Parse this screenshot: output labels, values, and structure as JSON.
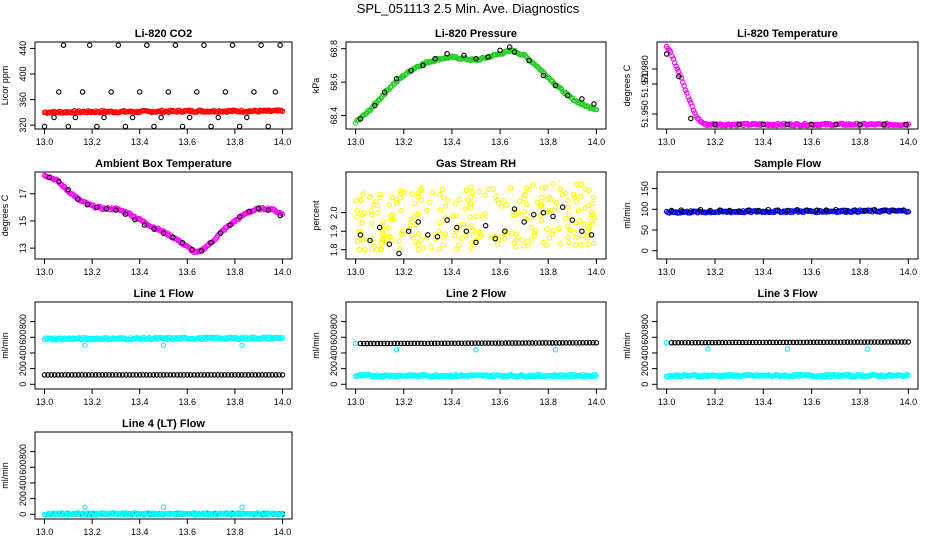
{
  "page": {
    "title": "SPL_051113  2.5 Min. Ave. Diagnostics"
  },
  "colors": {
    "red": "#ff0000",
    "green": "#22cc22",
    "magenta": "#ff00ff",
    "yellow": "#ffff00",
    "cyan": "#00ffff",
    "blue": "#0000ff",
    "black": "#000000"
  },
  "chart_data": [
    {
      "type": "scatter",
      "title": "Li-820 CO2",
      "ylabel": "Licor ppm",
      "xlim": [
        13.0,
        14.0
      ],
      "ylim": [
        314,
        450
      ],
      "x_ticks": [
        "13.0",
        "13.2",
        "13.4",
        "13.6",
        "13.8",
        "14.0"
      ],
      "y_ticks": [
        "320",
        "360",
        "400",
        "440"
      ],
      "series": [
        {
          "name": "black",
          "color": "#000000",
          "x": [
            13.0,
            13.02,
            13.04,
            13.06,
            13.08,
            13.1,
            13.13,
            13.16,
            13.19,
            13.22,
            13.25,
            13.28,
            13.31,
            13.34,
            13.37,
            13.4,
            13.43,
            13.46,
            13.49,
            13.52,
            13.55,
            13.58,
            13.61,
            13.64,
            13.67,
            13.7,
            13.73,
            13.76,
            13.79,
            13.82,
            13.85,
            13.88,
            13.91,
            13.94,
            13.97,
            13.99
          ],
          "y": [
            318,
            340,
            332,
            372,
            445,
            318,
            332,
            372,
            445,
            318,
            332,
            372,
            445,
            318,
            332,
            372,
            445,
            318,
            332,
            372,
            445,
            318,
            332,
            372,
            445,
            318,
            332,
            372,
            445,
            318,
            332,
            372,
            445,
            318,
            372,
            445
          ]
        },
        {
          "name": "red",
          "color": "#ff0000",
          "dense": true,
          "x": [
            13.0,
            13.2,
            13.4,
            13.6,
            13.8,
            14.0
          ],
          "y": [
            340,
            341,
            341,
            342,
            342,
            342
          ]
        }
      ]
    },
    {
      "type": "scatter",
      "title": "Li-820 Pressure",
      "ylabel": "kPa",
      "xlim": [
        13.0,
        14.0
      ],
      "ylim": [
        68.32,
        68.84
      ],
      "x_ticks": [
        "13.0",
        "13.2",
        "13.4",
        "13.6",
        "13.8",
        "14.0"
      ],
      "y_ticks": [
        "68.4",
        "68.6",
        "68.8"
      ],
      "series": [
        {
          "name": "green",
          "color": "#22cc22",
          "dense": true,
          "x": [
            13.0,
            13.05,
            13.1,
            13.15,
            13.2,
            13.25,
            13.3,
            13.35,
            13.4,
            13.45,
            13.5,
            13.55,
            13.6,
            13.65,
            13.7,
            13.75,
            13.8,
            13.85,
            13.9,
            13.95,
            14.0
          ],
          "y": [
            68.36,
            68.42,
            68.5,
            68.58,
            68.64,
            68.69,
            68.72,
            68.74,
            68.75,
            68.74,
            68.73,
            68.75,
            68.77,
            68.79,
            68.76,
            68.7,
            68.63,
            68.56,
            68.5,
            68.46,
            68.44
          ]
        },
        {
          "name": "black",
          "color": "#000000",
          "x": [
            13.02,
            13.08,
            13.12,
            13.17,
            13.23,
            13.28,
            13.33,
            13.38,
            13.45,
            13.5,
            13.55,
            13.6,
            13.64,
            13.66,
            13.72,
            13.78,
            13.83,
            13.88,
            13.94,
            13.99
          ],
          "y": [
            68.38,
            68.46,
            68.54,
            68.62,
            68.67,
            68.7,
            68.74,
            68.77,
            68.76,
            68.74,
            68.75,
            68.79,
            68.81,
            68.78,
            68.73,
            68.64,
            68.58,
            68.52,
            68.5,
            68.47
          ]
        }
      ]
    },
    {
      "type": "scatter",
      "title": "Li-820 Temperature",
      "ylabel": "degrees C",
      "xlim": [
        13.0,
        14.0
      ],
      "ylim": [
        51.94,
        51.998
      ],
      "x_ticks": [
        "13.0",
        "13.2",
        "13.4",
        "13.6",
        "13.8",
        "14.0"
      ],
      "y_ticks": [
        "51.950",
        "51.970",
        "51.980"
      ],
      "series": [
        {
          "name": "magenta",
          "color": "#ff00ff",
          "dense": true,
          "x": [
            13.0,
            13.02,
            13.04,
            13.06,
            13.08,
            13.1,
            13.12,
            13.14,
            13.16,
            13.2,
            13.3,
            13.5,
            13.7,
            13.9,
            14.0
          ],
          "y": [
            51.995,
            51.99,
            51.982,
            51.975,
            51.965,
            51.957,
            51.949,
            51.945,
            51.943,
            51.943,
            51.943,
            51.943,
            51.943,
            51.943,
            51.943
          ]
        },
        {
          "name": "black",
          "color": "#000000",
          "x": [
            13.0,
            13.05,
            13.1,
            13.2,
            13.3,
            13.4,
            13.5,
            13.6,
            13.7,
            13.8,
            13.9,
            13.99
          ],
          "y": [
            51.99,
            51.975,
            51.947,
            51.943,
            51.943,
            51.943,
            51.943,
            51.943,
            51.943,
            51.943,
            51.943,
            51.943
          ]
        }
      ]
    },
    {
      "type": "scatter",
      "title": "Ambient Box Temperature",
      "ylabel": "degrees C",
      "xlim": [
        13.0,
        14.0
      ],
      "ylim": [
        12.2,
        18.6
      ],
      "x_ticks": [
        "13.0",
        "13.2",
        "13.4",
        "13.6",
        "13.8",
        "14.0"
      ],
      "y_ticks": [
        "13",
        "15",
        "17"
      ],
      "series": [
        {
          "name": "magenta",
          "color": "#ff00ff",
          "dense": true,
          "x": [
            13.0,
            13.05,
            13.1,
            13.15,
            13.2,
            13.25,
            13.3,
            13.35,
            13.4,
            13.45,
            13.5,
            13.55,
            13.6,
            13.63,
            13.65,
            13.7,
            13.75,
            13.8,
            13.85,
            13.9,
            13.95,
            14.0
          ],
          "y": [
            18.4,
            18.0,
            17.2,
            16.5,
            16.1,
            15.9,
            15.9,
            15.6,
            15.1,
            14.6,
            14.2,
            13.7,
            13.1,
            12.7,
            12.7,
            13.4,
            14.3,
            15.0,
            15.6,
            15.9,
            15.9,
            15.5
          ]
        },
        {
          "name": "black",
          "color": "#000000",
          "x": [
            13.02,
            13.06,
            13.1,
            13.14,
            13.18,
            13.22,
            13.26,
            13.3,
            13.34,
            13.38,
            13.42,
            13.46,
            13.5,
            13.54,
            13.58,
            13.62,
            13.66,
            13.7,
            13.74,
            13.78,
            13.82,
            13.86,
            13.9,
            13.94,
            13.99
          ],
          "y": [
            18.2,
            17.9,
            17.3,
            16.6,
            16.2,
            16.0,
            15.9,
            15.8,
            15.5,
            15.1,
            14.7,
            14.4,
            14.1,
            13.8,
            13.4,
            12.9,
            12.8,
            13.4,
            14.1,
            14.7,
            15.3,
            15.7,
            15.9,
            15.8,
            15.4
          ]
        }
      ]
    },
    {
      "type": "scatter",
      "title": "Gas Stream RH",
      "ylabel": "percent",
      "xlim": [
        13.0,
        14.0
      ],
      "ylim": [
        1.75,
        2.22
      ],
      "x_ticks": [
        "13.0",
        "13.2",
        "13.4",
        "13.6",
        "13.8",
        "14.0"
      ],
      "y_ticks": [
        "1.8",
        "1.9",
        "2.0"
      ],
      "series": [
        {
          "name": "yellow",
          "color": "#ffff00",
          "scatter_band": [
            1.8,
            2.18
          ],
          "x": [
            13.0,
            14.0
          ],
          "y": [
            1.95,
            2.0
          ]
        },
        {
          "name": "black",
          "color": "#000000",
          "x": [
            13.02,
            13.06,
            13.1,
            13.14,
            13.18,
            13.22,
            13.26,
            13.3,
            13.34,
            13.38,
            13.42,
            13.46,
            13.5,
            13.54,
            13.58,
            13.62,
            13.66,
            13.7,
            13.74,
            13.78,
            13.82,
            13.86,
            13.9,
            13.94,
            13.98
          ],
          "y": [
            1.88,
            1.85,
            1.92,
            1.83,
            1.78,
            1.9,
            1.95,
            1.88,
            1.87,
            1.96,
            1.92,
            1.9,
            1.84,
            1.93,
            1.86,
            1.9,
            2.02,
            1.95,
            1.99,
            2.0,
            1.98,
            2.03,
            1.96,
            1.9,
            1.88
          ]
        }
      ]
    },
    {
      "type": "scatter",
      "title": "Sample Flow",
      "ylabel": "ml/min",
      "xlim": [
        13.0,
        14.0
      ],
      "ylim": [
        -20,
        190
      ],
      "x_ticks": [
        "13.0",
        "13.2",
        "13.4",
        "13.6",
        "13.8",
        "14.0"
      ],
      "y_ticks": [
        "0",
        "50",
        "100",
        "150"
      ],
      "series": [
        {
          "name": "blue",
          "color": "#0000ff",
          "dense": true,
          "x": [
            13.0,
            13.5,
            14.0
          ],
          "y": [
            93,
            95,
            96
          ]
        },
        {
          "name": "black",
          "color": "#000000",
          "x": [
            13.02,
            13.06,
            13.1,
            13.14,
            13.18,
            13.22,
            13.26,
            13.3,
            13.34,
            13.38,
            13.42,
            13.46,
            13.5,
            13.54,
            13.58,
            13.62,
            13.66,
            13.7,
            13.74,
            13.78,
            13.82,
            13.86,
            13.9,
            13.94,
            13.98
          ],
          "y": [
            97,
            98,
            96,
            99,
            97,
            98,
            97,
            96,
            98,
            97,
            99,
            98,
            97,
            99,
            98,
            97,
            98,
            99,
            97,
            98,
            97,
            99,
            98,
            97,
            98
          ]
        }
      ]
    },
    {
      "type": "scatter",
      "title": "Line 1 Flow",
      "ylabel": "ml/min",
      "xlim": [
        13.0,
        14.0
      ],
      "ylim": [
        -60,
        1050
      ],
      "x_ticks": [
        "13.0",
        "13.2",
        "13.4",
        "13.6",
        "13.8",
        "14.0"
      ],
      "y_ticks": [
        "0",
        "200",
        "400",
        "600",
        "800"
      ],
      "series": [
        {
          "name": "cyan",
          "color": "#00ffff",
          "dense": true,
          "x": [
            13.0,
            13.5,
            14.0
          ],
          "y": [
            580,
            585,
            590
          ]
        },
        {
          "name": "cyan-dips",
          "color": "#00ffff",
          "x": [
            13.17,
            13.5,
            13.83
          ],
          "y": [
            500,
            500,
            500
          ]
        },
        {
          "name": "black",
          "color": "#000000",
          "dense_outline": true,
          "x": [
            13.0,
            14.0
          ],
          "y": [
            120,
            120
          ]
        }
      ]
    },
    {
      "type": "scatter",
      "title": "Line 2 Flow",
      "ylabel": "ml/min",
      "xlim": [
        13.0,
        14.0
      ],
      "ylim": [
        -60,
        1050
      ],
      "x_ticks": [
        "13.0",
        "13.2",
        "13.4",
        "13.6",
        "13.8",
        "14.0"
      ],
      "y_ticks": [
        "0",
        "200",
        "400",
        "600",
        "800"
      ],
      "series": [
        {
          "name": "cyan",
          "color": "#00ffff",
          "dense": true,
          "x": [
            13.0,
            14.0
          ],
          "y": [
            110,
            110
          ]
        },
        {
          "name": "cyan-dips",
          "color": "#00ffff",
          "x": [
            13.0,
            13.17,
            13.5,
            13.83
          ],
          "y": [
            520,
            440,
            440,
            440
          ]
        },
        {
          "name": "black",
          "color": "#000000",
          "dense_outline": true,
          "x": [
            13.02,
            14.0
          ],
          "y": [
            520,
            530
          ]
        }
      ]
    },
    {
      "type": "scatter",
      "title": "Line 3 Flow",
      "ylabel": "ml/min",
      "xlim": [
        13.0,
        14.0
      ],
      "ylim": [
        -60,
        1050
      ],
      "x_ticks": [
        "13.0",
        "13.2",
        "13.4",
        "13.6",
        "13.8",
        "14.0"
      ],
      "y_ticks": [
        "0",
        "200",
        "400",
        "600",
        "800"
      ],
      "series": [
        {
          "name": "cyan",
          "color": "#00ffff",
          "dense": true,
          "x": [
            13.0,
            14.0
          ],
          "y": [
            110,
            110
          ]
        },
        {
          "name": "cyan-dips",
          "color": "#00ffff",
          "x": [
            13.0,
            13.17,
            13.5,
            13.83
          ],
          "y": [
            530,
            450,
            450,
            450
          ]
        },
        {
          "name": "black",
          "color": "#000000",
          "dense_outline": true,
          "x": [
            13.02,
            14.0
          ],
          "y": [
            530,
            540
          ]
        }
      ]
    },
    {
      "type": "scatter",
      "title": "Line 4 (LT) Flow",
      "ylabel": "ml/min",
      "xlim": [
        13.0,
        14.0
      ],
      "ylim": [
        -60,
        1050
      ],
      "x_ticks": [
        "13.0",
        "13.2",
        "13.4",
        "13.6",
        "13.8",
        "14.0"
      ],
      "y_ticks": [
        "0",
        "200",
        "400",
        "600",
        "800"
      ],
      "series": [
        {
          "name": "cyan-dips",
          "color": "#00ffff",
          "x": [
            13.17,
            13.5,
            13.83
          ],
          "y": [
            90,
            90,
            90
          ]
        },
        {
          "name": "black",
          "color": "#000000",
          "dense_outline": true,
          "x": [
            13.02,
            14.0
          ],
          "y": [
            5,
            5
          ]
        },
        {
          "name": "cyan",
          "color": "#00ffff",
          "dense": true,
          "x": [
            13.0,
            14.0
          ],
          "y": [
            5,
            5
          ]
        }
      ]
    }
  ]
}
